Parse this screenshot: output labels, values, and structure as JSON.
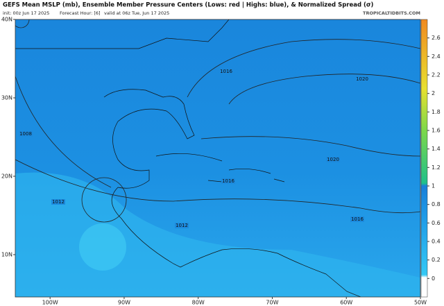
{
  "header": {
    "title": "GEFS Mean MSLP (mb), Ensemble Member Pressure Centers (Lows: red | Highs: blue), & Normalized Spread (σ)",
    "init": "init: 00z Jun 17 2025",
    "forecast_hour": "Forecast Hour: [6]",
    "valid": "valid at 06z Tue, Jun 17 2025",
    "credit": "TROPICALTIDBITS.COM"
  },
  "map": {
    "lat_lim": [
      4.6,
      40
    ],
    "lon_lim": [
      -104.7,
      -50
    ],
    "lat_ticks": [
      {
        "value": 40,
        "label": "40N"
      },
      {
        "value": 30,
        "label": "30N"
      },
      {
        "value": 20,
        "label": "20N"
      },
      {
        "value": 10,
        "label": "10N"
      }
    ],
    "lon_ticks": [
      {
        "value": -100,
        "label": "100W"
      },
      {
        "value": -90,
        "label": "90W"
      },
      {
        "value": -80,
        "label": "80W"
      },
      {
        "value": -70,
        "label": "70W"
      },
      {
        "value": -60,
        "label": "60W"
      },
      {
        "value": -50,
        "label": "50W"
      }
    ],
    "isobar_labels": [
      1016,
      1020,
      1008,
      1020,
      1016,
      1012,
      1016,
      1012
    ]
  },
  "colorbar": {
    "lim": [
      -0.2,
      2.8
    ],
    "ticks": [
      0,
      0.2,
      0.4,
      0.6,
      0.8,
      1,
      1.2,
      1.4,
      1.6,
      1.8,
      2,
      2.2,
      2.4,
      2.6
    ]
  }
}
